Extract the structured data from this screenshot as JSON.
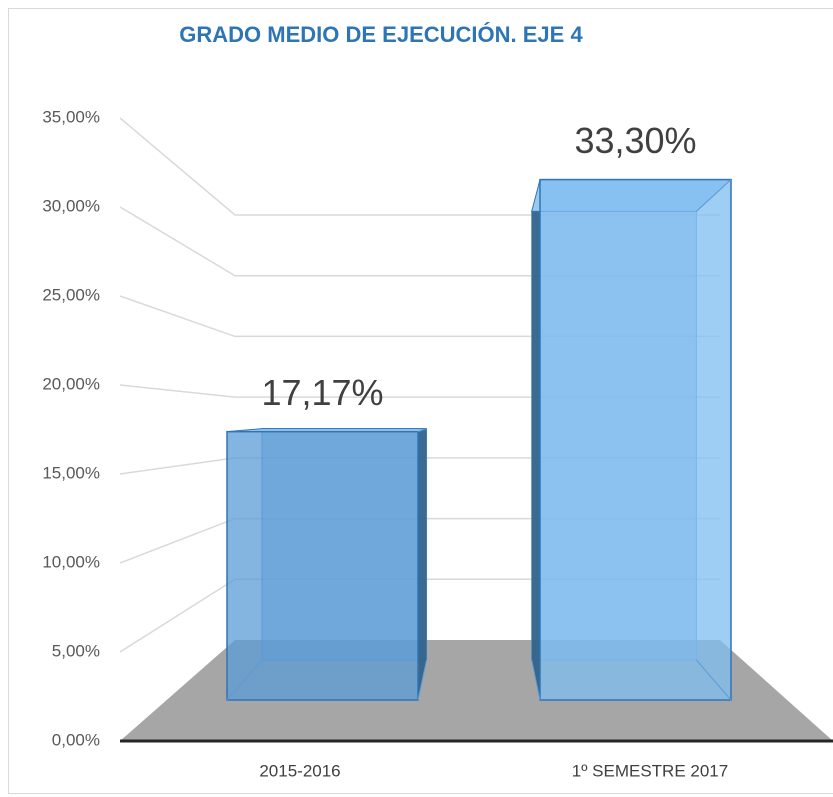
{
  "chart_data": {
    "type": "bar3d",
    "title": "GRADO MEDIO DE EJECUCIÓN. EJE 4",
    "categories": [
      "2015-2016",
      "1º SEMESTRE 2017"
    ],
    "values": [
      17.17,
      33.3
    ],
    "value_labels": [
      "17,17%",
      "33,30%"
    ],
    "color": "#6fa8dc",
    "ylim": [
      0,
      35
    ],
    "yticks": [
      {
        "value": 0,
        "label": "0,00%"
      },
      {
        "value": 5,
        "label": "5,00%"
      },
      {
        "value": 10,
        "label": "10,00%"
      },
      {
        "value": 15,
        "label": "15,00%"
      },
      {
        "value": 20,
        "label": "20,00%"
      },
      {
        "value": 25,
        "label": "25,00%"
      },
      {
        "value": 30,
        "label": "30,00%"
      },
      {
        "value": 35,
        "label": "35,00%"
      }
    ],
    "grid": true
  }
}
